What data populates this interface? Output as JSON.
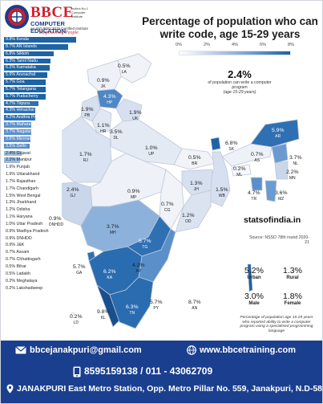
{
  "brand": {
    "name": "BBCE",
    "tagline_small": "India's No.1 Computer Institute",
    "subtitle": "COMPUTER EDUCATION",
    "small_line": "An ISO 9001:2015 Certified Institute",
    "motto": "Empowering People"
  },
  "title": "Percentage of population who can write code, age 15-29 years",
  "legend": {
    "ticks": [
      "0%",
      "2%",
      "4%",
      "6%",
      "8%"
    ],
    "colors": [
      "#ffffff",
      "#b9cbe6",
      "#6a9bd0",
      "#1e63a6"
    ]
  },
  "headline": {
    "value": "2.4%",
    "caption": "of population can write a computer program",
    "paren": "(age 15-29 years)"
  },
  "site": "statsofindia.in",
  "source": "Source: NSSO 78th round 2020-21",
  "stats": [
    {
      "value": "5.2%",
      "label": "Urban"
    },
    {
      "value": "1.3%",
      "label": "Rural"
    },
    {
      "value": "3.0%",
      "label": "Male"
    },
    {
      "value": "1.8%",
      "label": "Female"
    }
  ],
  "note": "Percentage of population age 15-29 years who reported ability to write a computer program using a specialised programming language",
  "chart_data": {
    "type": "table",
    "title": "Percentage of population who can write code, age 15-29 years",
    "unit": "%",
    "rows": [
      {
        "state": "Kerala",
        "value": 9.8
      },
      {
        "state": "AN Islands",
        "value": 8.7
      },
      {
        "state": "Sikkim",
        "value": 6.8
      },
      {
        "state": "Tamil Nadu",
        "value": 6.3
      },
      {
        "state": "Karnataka",
        "value": 6.2
      },
      {
        "state": "Arunachal",
        "value": 5.9
      },
      {
        "state": "Goa",
        "value": 5.7
      },
      {
        "state": "Telangana",
        "value": 5.7
      },
      {
        "state": "Puducherry",
        "value": 5.7
      },
      {
        "state": "Tripura",
        "value": 4.7
      },
      {
        "state": "Himachal",
        "value": 4.3
      },
      {
        "state": "Andhra Pradesh",
        "value": 4.2
      },
      {
        "state": "Maharashtra",
        "value": 3.7
      },
      {
        "state": "Nagaland",
        "value": 3.7
      },
      {
        "state": "Mizoram",
        "value": 3.6
      },
      {
        "state": "Delhi",
        "value": 3.5
      },
      {
        "state": "Gujarat",
        "value": 2.4
      },
      {
        "state": "Manipur",
        "value": 2.2
      },
      {
        "state": "Punjab",
        "value": 1.9
      },
      {
        "state": "Uttarakhand",
        "value": 1.9
      },
      {
        "state": "Rajasthan",
        "value": 1.7
      },
      {
        "state": "Chandigarh",
        "value": 1.7
      },
      {
        "state": "West Bengal",
        "value": 1.5
      },
      {
        "state": "Jharkhand",
        "value": 1.3
      },
      {
        "state": "Odisha",
        "value": 1.2
      },
      {
        "state": "Haryana",
        "value": 1.1
      },
      {
        "state": "Uttar Pradesh",
        "value": 1.0
      },
      {
        "state": "Madhya Pradesh",
        "value": 0.9
      },
      {
        "state": "DNHDD",
        "value": 0.9
      },
      {
        "state": "J&K",
        "value": 0.9
      },
      {
        "state": "Assam",
        "value": 0.7
      },
      {
        "state": "Chhattisgarh",
        "value": 0.7
      },
      {
        "state": "Bihar",
        "value": 0.5
      },
      {
        "state": "Ladakh",
        "value": 0.5
      },
      {
        "state": "Meghalaya",
        "value": 0.2
      },
      {
        "state": "Lakshadweep",
        "value": 0.2
      }
    ],
    "map_labels": [
      {
        "v": "0.5%",
        "c": "LA"
      },
      {
        "v": "0.9%",
        "c": "JK"
      },
      {
        "v": "4.3%",
        "c": "HP"
      },
      {
        "v": "1.9%",
        "c": "PB"
      },
      {
        "v": "1.9%",
        "c": "UK"
      },
      {
        "v": "1.1%",
        "c": "HR"
      },
      {
        "v": "3.5%",
        "c": "DL"
      },
      {
        "v": "1.0%",
        "c": "UP"
      },
      {
        "v": "1.7%",
        "c": "RJ"
      },
      {
        "v": "0.5%",
        "c": "BR"
      },
      {
        "v": "6.8%",
        "c": "SK"
      },
      {
        "v": "5.9%",
        "c": "AR"
      },
      {
        "v": "0.7%",
        "c": "AS"
      },
      {
        "v": "3.7%",
        "c": "NL"
      },
      {
        "v": "0.2%",
        "c": "ML"
      },
      {
        "v": "2.2%",
        "c": "MN"
      },
      {
        "v": "4.7%",
        "c": "TR"
      },
      {
        "v": "3.6%",
        "c": "MZ"
      },
      {
        "v": "1.3%",
        "c": "JH"
      },
      {
        "v": "1.5%",
        "c": "WB"
      },
      {
        "v": "2.4%",
        "c": "GJ"
      },
      {
        "v": "0.9%",
        "c": "MP"
      },
      {
        "v": "0.7%",
        "c": "CG"
      },
      {
        "v": "1.2%",
        "c": "OD"
      },
      {
        "v": "0.9%",
        "c": "DNHDD"
      },
      {
        "v": "3.7%",
        "c": "MH"
      },
      {
        "v": "5.7%",
        "c": "TG"
      },
      {
        "v": "5.7%",
        "c": "GA"
      },
      {
        "v": "6.2%",
        "c": "KA"
      },
      {
        "v": "4.2%",
        "c": "AP"
      },
      {
        "v": "9.8%",
        "c": "KL"
      },
      {
        "v": "6.3%",
        "c": "TN"
      },
      {
        "v": "5.7%",
        "c": "PY"
      },
      {
        "v": "8.7%",
        "c": "AN"
      },
      {
        "v": "0.2%",
        "c": "LD"
      }
    ]
  },
  "footer": {
    "email": "bbcejanakpuri@gmail.com",
    "website": "www.bbcetraining.com",
    "phone": "8595159138 / 011 - 43062709",
    "address": "JANAKPURI East Metro Station, Opp. Metro Pillar No. 559, Janakpuri, N.D-58"
  }
}
